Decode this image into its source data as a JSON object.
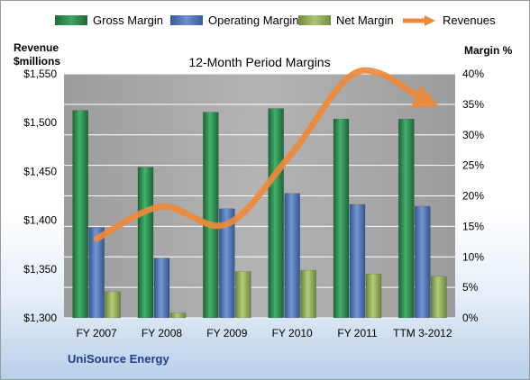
{
  "colors": {
    "gross": "#2e8b4f",
    "operating": "#4e73b8",
    "net": "#92ad5a",
    "revenues": "#ed8a3a",
    "plot_bg": "#a6a6a6",
    "gridline": "#ffffff"
  },
  "left_axis_title_line1": "Revenue",
  "left_axis_title_line2": "$millions",
  "right_axis_title": "Margin %",
  "company": "UniSource Energy",
  "chart_data": {
    "type": "bar",
    "title": "12-Month Period Margins",
    "categories": [
      "FY 2007",
      "FY 2008",
      "FY 2009",
      "FY 2010",
      "FY 2011",
      "TTM 3-2012"
    ],
    "legend_position": "top",
    "grid": true,
    "series": [
      {
        "name": "Gross Margin",
        "axis": "right",
        "type": "bar",
        "values": [
          34.0,
          24.7,
          33.7,
          34.3,
          32.6,
          32.6
        ]
      },
      {
        "name": "Operating Margin",
        "axis": "right",
        "type": "bar",
        "values": [
          14.8,
          9.8,
          17.9,
          20.4,
          18.6,
          18.3
        ]
      },
      {
        "name": "Net Margin",
        "axis": "right",
        "type": "bar",
        "values": [
          4.3,
          0.8,
          7.6,
          7.8,
          7.2,
          6.8
        ]
      },
      {
        "name": "Revenues",
        "axis": "left",
        "type": "line",
        "values": [
          1381,
          1414,
          1396,
          1469,
          1552,
          1524
        ]
      }
    ],
    "left_axis": {
      "min": 1300,
      "max": 1550,
      "step": 50,
      "ticks": [
        "$1,300",
        "$1,350",
        "$1,400",
        "$1,450",
        "$1,500",
        "$1,550"
      ]
    },
    "right_axis": {
      "min": 0,
      "max": 40,
      "step": 5,
      "ticks": [
        "0%",
        "5%",
        "10%",
        "15%",
        "20%",
        "25%",
        "30%",
        "35%",
        "40%"
      ]
    }
  }
}
